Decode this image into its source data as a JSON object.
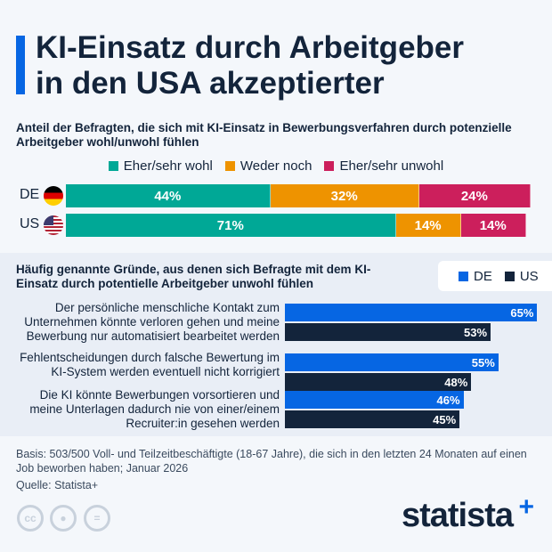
{
  "title_line1": "KI-Einsatz durch Arbeitgeber",
  "title_line2": "in den USA akzeptierter",
  "colors": {
    "accent": "#0666e3",
    "wohl": "#00a896",
    "weder": "#ee9300",
    "unwohl": "#cc1f5c",
    "de": "#0666e3",
    "us": "#13243b"
  },
  "chart_data": [
    {
      "type": "bar",
      "stacked": true,
      "orientation": "horizontal",
      "title": "Anteil der Befragten, die sich mit KI-Einsatz in Bewerbungsverfahren durch potenzielle Arbeitgeber wohl/unwohl fühlen",
      "categories": [
        "DE",
        "US"
      ],
      "series": [
        {
          "name": "Eher/sehr wohl",
          "values": [
            44,
            71
          ],
          "labels": [
            "44%",
            "71%"
          ]
        },
        {
          "name": "Weder noch",
          "values": [
            32,
            14
          ],
          "labels": [
            "32%",
            "14%"
          ]
        },
        {
          "name": "Eher/sehr unwohl",
          "values": [
            24,
            14
          ],
          "labels": [
            "24%",
            "14%"
          ]
        }
      ],
      "legend": "top"
    },
    {
      "type": "bar",
      "orientation": "horizontal",
      "title": "Häufig genannte Gründe, aus denen sich Befragte mit dem KI-Einsatz durch potentielle Arbeitgeber unwohl fühlen",
      "categories": [
        "Der persönliche menschliche Kontakt zum Unternehmen könnte verloren gehen und meine Bewerbung nur automatisiert bearbeitet werden",
        "Fehlentscheidungen durch falsche Bewertung im KI-System werden eventuell nicht korrigiert",
        "Die KI könnte Bewerbungen vorsortieren und meine Unterlagen dadurch nie von einer/einem Recruiter:in gesehen werden"
      ],
      "series": [
        {
          "name": "DE",
          "values": [
            65,
            55,
            46
          ],
          "labels": [
            "65%",
            "55%",
            "46%"
          ]
        },
        {
          "name": "US",
          "values": [
            53,
            48,
            45
          ],
          "labels": [
            "53%",
            "48%",
            "45%"
          ]
        }
      ],
      "legend": "top-right"
    }
  ],
  "footer": {
    "basis": "Basis: 503/500 Voll- und Teilzeitbeschäftigte (18-67 Jahre), die sich in den letzten 24 Monaten auf einen Job beworben haben; Januar 2026",
    "source": "Quelle: Statista+",
    "logo": "statista+"
  }
}
